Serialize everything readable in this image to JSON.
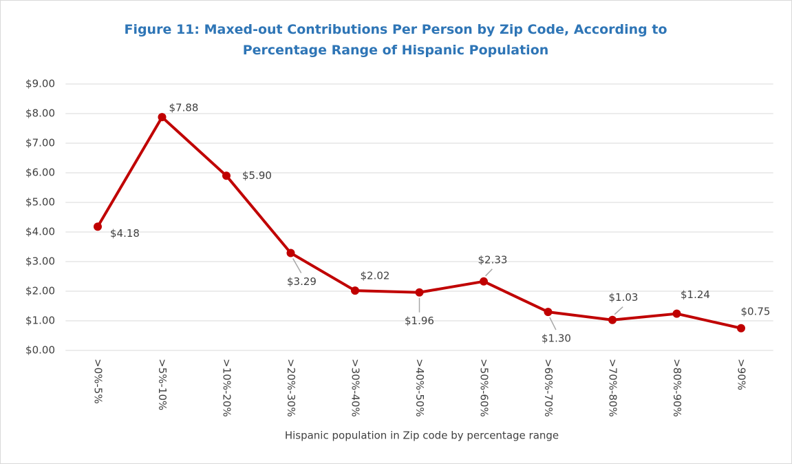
{
  "chart_data": {
    "type": "line",
    "title": "Figure 11: Maxed-out Contributions Per Person by Zip Code, According to Percentage Range of Hispanic Population",
    "x_label": "Hispanic population in Zip code by percentage range",
    "categories": [
      ">0%-5%",
      ">5%-10%",
      ">10%-20%",
      ">20%-30%",
      ">30%-40%",
      ">40%-50%",
      ">50%-60%",
      ">60%-70%",
      ">70%-80%",
      ">80%-90%",
      ">90%"
    ],
    "series": [
      {
        "name": "Maxed-out Contributions Per Person",
        "color": "#c00000",
        "values": [
          4.18,
          7.88,
          5.9,
          3.29,
          2.02,
          1.96,
          2.33,
          1.3,
          1.03,
          1.24,
          0.75
        ],
        "value_labels": [
          "$4.18",
          "$7.88",
          "$5.90",
          "$3.29",
          "$2.02",
          "$1.96",
          "$2.33",
          "$1.30",
          "$1.03",
          "$1.24",
          "$0.75"
        ]
      }
    ],
    "ylim": [
      0,
      9
    ],
    "yticks": [
      {
        "value": 0,
        "label": "$0.00"
      },
      {
        "value": 1,
        "label": "$1.00"
      },
      {
        "value": 2,
        "label": "$2.00"
      },
      {
        "value": 3,
        "label": "$3.00"
      },
      {
        "value": 4,
        "label": "$4.00"
      },
      {
        "value": 5,
        "label": "$5.00"
      },
      {
        "value": 6,
        "label": "$6.00"
      },
      {
        "value": 7,
        "label": "$7.00"
      },
      {
        "value": 8,
        "label": "$8.00"
      },
      {
        "value": 9,
        "label": "$9.00"
      }
    ],
    "grid": true
  }
}
